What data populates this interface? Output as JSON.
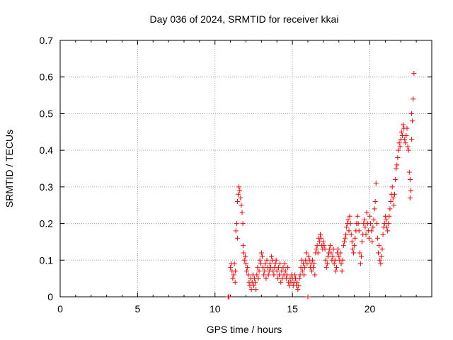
{
  "chart_data": {
    "type": "scatter",
    "title": "Day 036 of 2024, SRMTID for receiver kkai",
    "xlabel": "GPS time / hours",
    "ylabel": "SRMTID / TECUs",
    "xlim": [
      0,
      24
    ],
    "ylim": [
      0,
      0.7
    ],
    "grid": true,
    "marker": "+",
    "color": "#ff0000",
    "x_ticks": [
      0,
      5,
      10,
      15,
      20
    ],
    "y_ticks": [
      0,
      0.1,
      0.2,
      0.3,
      0.4,
      0.5,
      0.6,
      0.7
    ],
    "x_tick_labels": [
      "0",
      "5",
      "10",
      "15",
      "20"
    ],
    "y_tick_labels": [
      "0",
      "0.1",
      "0.2",
      "0.3",
      "0.4",
      "0.5",
      "0.6",
      "0.7"
    ],
    "series": [
      {
        "name": "kkai",
        "points": [
          [
            10.85,
            0.0
          ],
          [
            10.9,
            0.0
          ],
          [
            11.0,
            0.08
          ],
          [
            11.05,
            0.09
          ],
          [
            11.1,
            0.07
          ],
          [
            11.15,
            0.05
          ],
          [
            11.2,
            0.06
          ],
          [
            11.25,
            0.09
          ],
          [
            11.3,
            0.04
          ],
          [
            11.32,
            0.07
          ],
          [
            11.35,
            0.18
          ],
          [
            11.4,
            0.2
          ],
          [
            11.45,
            0.16
          ],
          [
            11.45,
            0.26
          ],
          [
            11.5,
            0.28
          ],
          [
            11.55,
            0.3
          ],
          [
            11.6,
            0.29
          ],
          [
            11.65,
            0.27
          ],
          [
            11.7,
            0.25
          ],
          [
            11.75,
            0.23
          ],
          [
            11.8,
            0.2
          ],
          [
            11.82,
            0.14
          ],
          [
            11.85,
            0.12
          ],
          [
            11.9,
            0.1
          ],
          [
            11.95,
            0.11
          ],
          [
            12.0,
            0.09
          ],
          [
            12.05,
            0.07
          ],
          [
            12.1,
            0.08
          ],
          [
            12.15,
            0.06
          ],
          [
            12.2,
            0.04
          ],
          [
            12.25,
            0.03
          ],
          [
            12.3,
            0.05
          ],
          [
            12.35,
            0.02
          ],
          [
            12.4,
            0.04
          ],
          [
            12.45,
            0.06
          ],
          [
            12.5,
            0.03
          ],
          [
            12.55,
            0.05
          ],
          [
            12.6,
            0.04
          ],
          [
            12.65,
            0.02
          ],
          [
            12.7,
            0.06
          ],
          [
            12.75,
            0.08
          ],
          [
            12.8,
            0.05
          ],
          [
            12.85,
            0.07
          ],
          [
            12.9,
            0.1
          ],
          [
            12.95,
            0.09
          ],
          [
            13.0,
            0.12
          ],
          [
            13.05,
            0.11
          ],
          [
            13.1,
            0.08
          ],
          [
            13.15,
            0.06
          ],
          [
            13.2,
            0.07
          ],
          [
            13.25,
            0.09
          ],
          [
            13.3,
            0.05
          ],
          [
            13.35,
            0.1
          ],
          [
            13.4,
            0.08
          ],
          [
            13.45,
            0.06
          ],
          [
            13.5,
            0.07
          ],
          [
            13.55,
            0.09
          ],
          [
            13.6,
            0.08
          ],
          [
            13.65,
            0.11
          ],
          [
            13.7,
            0.1
          ],
          [
            13.75,
            0.07
          ],
          [
            13.8,
            0.06
          ],
          [
            13.85,
            0.08
          ],
          [
            13.9,
            0.09
          ],
          [
            13.95,
            0.1
          ],
          [
            14.0,
            0.07
          ],
          [
            14.05,
            0.05
          ],
          [
            14.1,
            0.08
          ],
          [
            14.15,
            0.06
          ],
          [
            14.2,
            0.09
          ],
          [
            14.25,
            0.04
          ],
          [
            14.3,
            0.07
          ],
          [
            14.35,
            0.05
          ],
          [
            14.4,
            0.08
          ],
          [
            14.45,
            0.06
          ],
          [
            14.5,
            0.09
          ],
          [
            14.55,
            0.07
          ],
          [
            14.6,
            0.05
          ],
          [
            14.65,
            0.06
          ],
          [
            14.7,
            0.08
          ],
          [
            14.75,
            0.04
          ],
          [
            14.8,
            0.03
          ],
          [
            14.85,
            0.05
          ],
          [
            14.9,
            0.04
          ],
          [
            14.95,
            0.06
          ],
          [
            15.0,
            0.05
          ],
          [
            15.05,
            0.03
          ],
          [
            15.1,
            0.04
          ],
          [
            15.15,
            0.06
          ],
          [
            15.2,
            0.05
          ],
          [
            15.25,
            0.03
          ],
          [
            15.3,
            0.04
          ],
          [
            15.35,
            0.02
          ],
          [
            15.4,
            0.03
          ],
          [
            15.45,
            0.05
          ],
          [
            15.5,
            0.06
          ],
          [
            15.55,
            0.08
          ],
          [
            15.6,
            0.1
          ],
          [
            15.65,
            0.07
          ],
          [
            15.7,
            0.09
          ],
          [
            15.75,
            0.06
          ],
          [
            15.8,
            0.08
          ],
          [
            15.85,
            0.1
          ],
          [
            15.9,
            0.12
          ],
          [
            15.95,
            0.09
          ],
          [
            16.0,
            0.0
          ],
          [
            16.05,
            0.11
          ],
          [
            16.1,
            0.1
          ],
          [
            16.15,
            0.08
          ],
          [
            16.2,
            0.09
          ],
          [
            16.25,
            0.07
          ],
          [
            16.3,
            0.1
          ],
          [
            16.35,
            0.08
          ],
          [
            16.4,
            0.09
          ],
          [
            16.45,
            0.06
          ],
          [
            16.5,
            0.12
          ],
          [
            16.55,
            0.13
          ],
          [
            16.6,
            0.14
          ],
          [
            16.65,
            0.12
          ],
          [
            16.7,
            0.16
          ],
          [
            16.75,
            0.15
          ],
          [
            16.8,
            0.17
          ],
          [
            16.85,
            0.16
          ],
          [
            16.9,
            0.14
          ],
          [
            16.95,
            0.13
          ],
          [
            17.0,
            0.15
          ],
          [
            17.05,
            0.14
          ],
          [
            17.1,
            0.13
          ],
          [
            17.15,
            0.1
          ],
          [
            17.2,
            0.08
          ],
          [
            17.25,
            0.09
          ],
          [
            17.3,
            0.11
          ],
          [
            17.35,
            0.12
          ],
          [
            17.4,
            0.13
          ],
          [
            17.45,
            0.14
          ],
          [
            17.5,
            0.12
          ],
          [
            17.55,
            0.1
          ],
          [
            17.6,
            0.11
          ],
          [
            17.65,
            0.13
          ],
          [
            17.7,
            0.09
          ],
          [
            17.75,
            0.1
          ],
          [
            17.8,
            0.07
          ],
          [
            17.85,
            0.08
          ],
          [
            17.9,
            0.12
          ],
          [
            17.95,
            0.13
          ],
          [
            18.0,
            0.11
          ],
          [
            18.05,
            0.1
          ],
          [
            18.1,
            0.12
          ],
          [
            18.15,
            0.09
          ],
          [
            18.2,
            0.07
          ],
          [
            18.25,
            0.1
          ],
          [
            18.3,
            0.14
          ],
          [
            18.35,
            0.15
          ],
          [
            18.4,
            0.16
          ],
          [
            18.45,
            0.17
          ],
          [
            18.5,
            0.19
          ],
          [
            18.55,
            0.2
          ],
          [
            18.6,
            0.21
          ],
          [
            18.65,
            0.18
          ],
          [
            18.7,
            0.22
          ],
          [
            18.75,
            0.2
          ],
          [
            18.8,
            0.17
          ],
          [
            18.85,
            0.15
          ],
          [
            18.9,
            0.13
          ],
          [
            18.95,
            0.12
          ],
          [
            19.0,
            0.14
          ],
          [
            19.05,
            0.16
          ],
          [
            19.1,
            0.18
          ],
          [
            19.15,
            0.2
          ],
          [
            19.2,
            0.22
          ],
          [
            19.25,
            0.2
          ],
          [
            19.3,
            0.18
          ],
          [
            19.35,
            0.12
          ],
          [
            19.4,
            0.09
          ],
          [
            19.45,
            0.11
          ],
          [
            19.5,
            0.15
          ],
          [
            19.55,
            0.17
          ],
          [
            19.6,
            0.2
          ],
          [
            19.65,
            0.21
          ],
          [
            19.7,
            0.19
          ],
          [
            19.75,
            0.17
          ],
          [
            19.8,
            0.23
          ],
          [
            19.85,
            0.2
          ],
          [
            19.9,
            0.18
          ],
          [
            19.95,
            0.16
          ],
          [
            20.0,
            0.22
          ],
          [
            20.05,
            0.2
          ],
          [
            20.1,
            0.18
          ],
          [
            20.15,
            0.15
          ],
          [
            20.2,
            0.19
          ],
          [
            20.25,
            0.21
          ],
          [
            20.3,
            0.24
          ],
          [
            20.35,
            0.26
          ],
          [
            20.4,
            0.31
          ],
          [
            20.45,
            0.2
          ],
          [
            20.5,
            0.16
          ],
          [
            20.55,
            0.12
          ],
          [
            20.6,
            0.14
          ],
          [
            20.65,
            0.1
          ],
          [
            20.7,
            0.09
          ],
          [
            20.75,
            0.11
          ],
          [
            20.8,
            0.13
          ],
          [
            20.85,
            0.17
          ],
          [
            20.9,
            0.19
          ],
          [
            20.95,
            0.2
          ],
          [
            21.0,
            0.22
          ],
          [
            21.05,
            0.21
          ],
          [
            21.1,
            0.19
          ],
          [
            21.15,
            0.18
          ],
          [
            21.2,
            0.2
          ],
          [
            21.25,
            0.22
          ],
          [
            21.3,
            0.24
          ],
          [
            21.35,
            0.26
          ],
          [
            21.4,
            0.28
          ],
          [
            21.45,
            0.3
          ],
          [
            21.5,
            0.27
          ],
          [
            21.55,
            0.25
          ],
          [
            21.6,
            0.28
          ],
          [
            21.65,
            0.32
          ],
          [
            21.7,
            0.35
          ],
          [
            21.75,
            0.36
          ],
          [
            21.8,
            0.38
          ],
          [
            21.85,
            0.4
          ],
          [
            21.9,
            0.42
          ],
          [
            21.95,
            0.41
          ],
          [
            22.0,
            0.43
          ],
          [
            22.05,
            0.45
          ],
          [
            22.1,
            0.44
          ],
          [
            22.15,
            0.47
          ],
          [
            22.2,
            0.46
          ],
          [
            22.25,
            0.43
          ],
          [
            22.3,
            0.42
          ],
          [
            22.35,
            0.44
          ],
          [
            22.4,
            0.46
          ],
          [
            22.45,
            0.41
          ],
          [
            22.5,
            0.4
          ],
          [
            22.55,
            0.34
          ],
          [
            22.6,
            0.32
          ],
          [
            22.65,
            0.29
          ],
          [
            22.7,
            0.43
          ],
          [
            22.75,
            0.48
          ],
          [
            22.8,
            0.54
          ],
          [
            22.85,
            0.61
          ],
          [
            22.6,
            0.27
          ],
          [
            22.7,
            0.5
          ]
        ]
      }
    ]
  }
}
